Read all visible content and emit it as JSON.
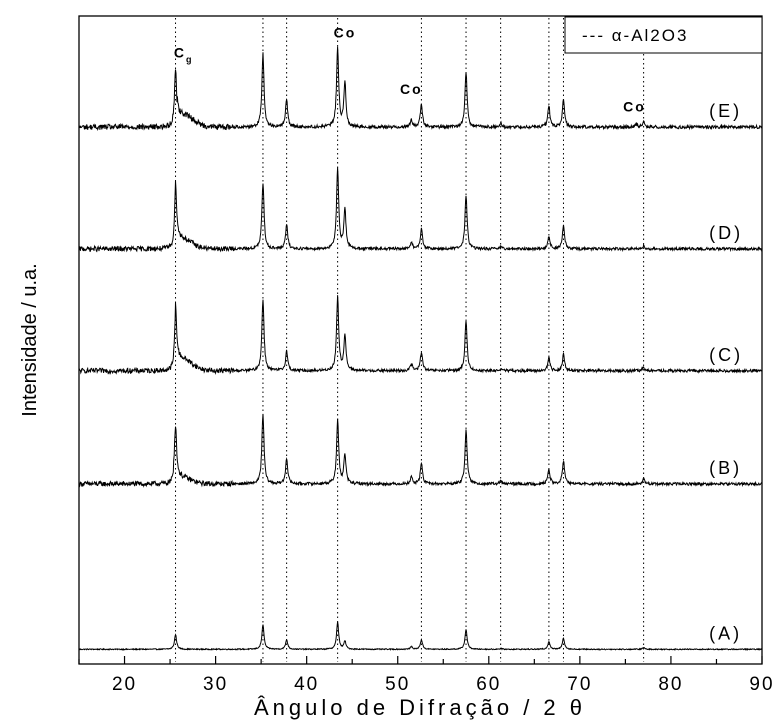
{
  "chart_data": {
    "type": "line",
    "title": "",
    "xlabel": "Ângulo de Difração / 2 θ",
    "ylabel": "Intensidade / u.a.",
    "xlim": [
      15,
      90
    ],
    "xticks": [
      20,
      30,
      40,
      50,
      60,
      70,
      80,
      90
    ],
    "yticks_shown": false,
    "grid": false,
    "legend": {
      "placement": "top-right",
      "entries": [
        {
          "label": "--- α-Al2O3",
          "style": "dotted"
        }
      ]
    },
    "reference_lines_alpha_Al2O3": [
      25.6,
      35.2,
      37.8,
      43.4,
      52.6,
      57.5,
      61.3,
      66.6,
      68.2,
      77.0
    ],
    "annotations": [
      {
        "text": "Cg",
        "x": 26.5,
        "series": "(E)"
      },
      {
        "text": "Co",
        "x": 44.2,
        "series": "(E)"
      },
      {
        "text": "Co",
        "x": 51.5,
        "series": "(E)"
      },
      {
        "text": "Co",
        "x": 76.0,
        "series": "(E)"
      }
    ],
    "series": [
      {
        "name": "(A)",
        "baseline": 0,
        "noise": 0.6,
        "peaks": [
          [
            25.6,
            17
          ],
          [
            35.2,
            28
          ],
          [
            37.8,
            11
          ],
          [
            43.4,
            31
          ],
          [
            44.2,
            9
          ],
          [
            51.5,
            3
          ],
          [
            52.6,
            11
          ],
          [
            57.5,
            23
          ],
          [
            61.3,
            1
          ],
          [
            66.6,
            9
          ],
          [
            68.2,
            13
          ],
          [
            77.0,
            2
          ]
        ]
      },
      {
        "name": "(B)",
        "baseline": 190,
        "noise": 1.6,
        "peaks": [
          [
            25.6,
            61
          ],
          [
            35.2,
            80
          ],
          [
            37.8,
            30
          ],
          [
            43.4,
            73
          ],
          [
            44.2,
            33
          ],
          [
            51.5,
            8
          ],
          [
            52.6,
            24
          ],
          [
            57.5,
            63
          ],
          [
            61.3,
            3
          ],
          [
            66.6,
            17
          ],
          [
            68.2,
            27
          ],
          [
            77.0,
            5
          ]
        ],
        "hump": [
          26.0,
          8
        ]
      },
      {
        "name": "(C)",
        "baseline": 320,
        "noise": 1.6,
        "peaks": [
          [
            25.6,
            65
          ],
          [
            35.2,
            82
          ],
          [
            37.8,
            23
          ],
          [
            43.4,
            85
          ],
          [
            44.2,
            40
          ],
          [
            51.5,
            8
          ],
          [
            52.6,
            22
          ],
          [
            57.5,
            58
          ],
          [
            61.3,
            2
          ],
          [
            66.6,
            15
          ],
          [
            68.2,
            19
          ],
          [
            77.0,
            4
          ]
        ],
        "hump": [
          26.2,
          14
        ]
      },
      {
        "name": "(D)",
        "baseline": 460,
        "noise": 1.6,
        "peaks": [
          [
            25.6,
            68
          ],
          [
            35.2,
            76
          ],
          [
            37.8,
            28
          ],
          [
            43.4,
            92
          ],
          [
            44.2,
            45
          ],
          [
            51.5,
            8
          ],
          [
            52.6,
            23
          ],
          [
            57.5,
            62
          ],
          [
            61.3,
            2
          ],
          [
            66.6,
            15
          ],
          [
            68.2,
            27
          ],
          [
            77.0,
            4
          ]
        ],
        "hump": [
          26.2,
          12
        ]
      },
      {
        "name": "(E)",
        "baseline": 600,
        "noise": 1.8,
        "peaks": [
          [
            25.6,
            68
          ],
          [
            35.2,
            84
          ],
          [
            37.8,
            32
          ],
          [
            43.4,
            91
          ],
          [
            44.2,
            50
          ],
          [
            51.5,
            8
          ],
          [
            52.6,
            26
          ],
          [
            57.5,
            64
          ],
          [
            61.3,
            4
          ],
          [
            66.6,
            24
          ],
          [
            68.2,
            32
          ],
          [
            76.2,
            3
          ],
          [
            77.0,
            6
          ]
        ],
        "hump": [
          26.4,
          14
        ]
      }
    ],
    "series_y_range": [
      -10,
      700
    ]
  }
}
